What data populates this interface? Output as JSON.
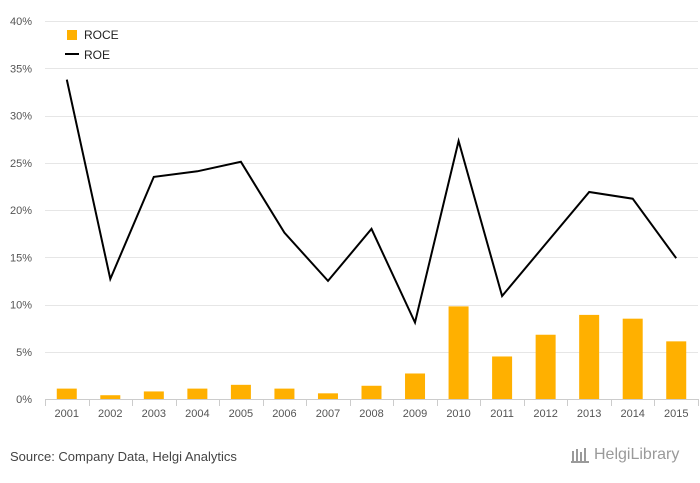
{
  "chart_data": {
    "type": "bar",
    "categories": [
      "2001",
      "2002",
      "2003",
      "2004",
      "2005",
      "2006",
      "2007",
      "2008",
      "2009",
      "2010",
      "2011",
      "2012",
      "2013",
      "2014",
      "2015"
    ],
    "series": [
      {
        "name": "ROCE",
        "kind": "bar",
        "color": "#FFB000",
        "values": [
          1.1,
          0.4,
          0.8,
          1.1,
          1.5,
          1.1,
          0.6,
          1.4,
          2.7,
          9.8,
          4.5,
          6.8,
          8.9,
          8.5,
          6.1
        ]
      },
      {
        "name": "ROE",
        "kind": "line",
        "color": "#000000",
        "values": [
          33.8,
          12.7,
          23.5,
          24.1,
          25.1,
          17.6,
          12.5,
          18.0,
          8.1,
          27.3,
          10.9,
          16.4,
          21.9,
          21.2,
          14.9
        ]
      }
    ],
    "ylim": [
      0,
      40
    ],
    "yticks": [
      "0%",
      "5%",
      "10%",
      "15%",
      "20%",
      "25%",
      "30%",
      "35%",
      "40%"
    ],
    "ytick_values": [
      0,
      5,
      10,
      15,
      20,
      25,
      30,
      35,
      40
    ],
    "grid": true,
    "legend": "top-left",
    "title": "",
    "xlabel": "",
    "ylabel": ""
  },
  "footer": {
    "source": "Source: Company Data, Helgi Analytics",
    "logo_text": "HelgiLibrary"
  }
}
